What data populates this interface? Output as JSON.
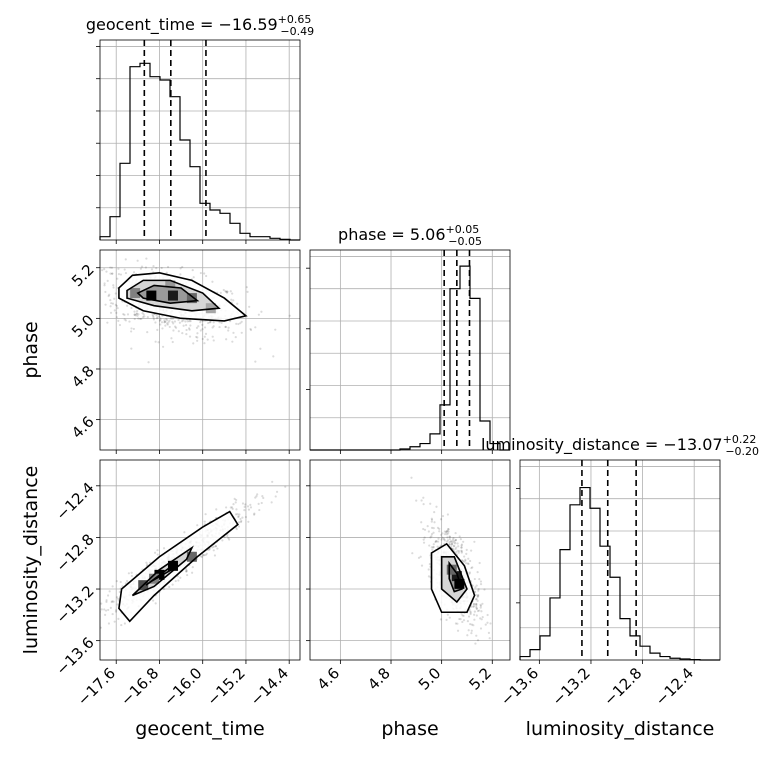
{
  "chart_data": {
    "type": "corner",
    "grid": true,
    "parameters": [
      {
        "name": "geocent_time",
        "label": "geocent_time",
        "median": "−16.59",
        "plus": "+0.65",
        "minus": "−0.49",
        "range": [
          -17.9,
          -14.2
        ],
        "ticks": [
          -17.6,
          -16.8,
          -16.0,
          -15.2,
          -14.4
        ],
        "tick_labels": [
          "−17.6",
          "−16.8",
          "−16.0",
          "−15.2",
          "−14.4"
        ],
        "quantiles": [
          -17.08,
          -16.59,
          -15.94
        ]
      },
      {
        "name": "phase",
        "label": "phase",
        "median": "5.06",
        "plus": "+0.05",
        "minus": "−0.05",
        "range": [
          4.48,
          5.27
        ],
        "ticks": [
          4.6,
          4.8,
          5.0,
          5.2
        ],
        "tick_labels": [
          "4.6",
          "4.8",
          "5.0",
          "5.2"
        ],
        "quantiles": [
          5.01,
          5.06,
          5.11
        ]
      },
      {
        "name": "luminosity_distance",
        "label": "luminosity_distance",
        "median": "−13.07",
        "plus": "+0.22",
        "minus": "−0.20",
        "range": [
          -13.75,
          -12.2
        ],
        "ticks": [
          -13.6,
          -13.2,
          -12.8,
          -12.4
        ],
        "tick_labels": [
          "−13.6",
          "−13.2",
          "−12.8",
          "−12.4"
        ],
        "quantiles": [
          -13.27,
          -13.07,
          -12.85
        ]
      }
    ],
    "histograms": [
      {
        "param": "geocent_time",
        "bin_edges_range": [
          -17.9,
          -14.2
        ],
        "bins": 20,
        "counts": [
          1,
          7,
          23,
          52,
          53,
          49,
          48,
          43,
          30,
          22,
          11,
          9,
          8,
          5,
          2,
          1,
          1,
          0.5,
          0.2,
          0
        ],
        "ymax": 60
      },
      {
        "param": "phase",
        "bin_edges_range": [
          4.48,
          5.27
        ],
        "bins": 20,
        "counts": [
          0,
          0,
          0,
          0,
          0,
          0,
          0,
          0,
          0,
          0.3,
          1,
          2,
          5,
          14,
          50,
          57,
          47,
          9,
          2,
          0
        ],
        "ymax": 62
      },
      {
        "param": "luminosity_distance",
        "bin_edges_range": [
          -13.75,
          -12.2
        ],
        "bins": 20,
        "counts": [
          1,
          3,
          7,
          18,
          32,
          45,
          50,
          44,
          33,
          24,
          12,
          7,
          4,
          2,
          1,
          0.5,
          0.3,
          0.1,
          0,
          0
        ],
        "ymax": 58
      }
    ],
    "joint": [
      {
        "x": "geocent_time",
        "y": "phase",
        "contours": [
          [
            [
              -17.55,
              5.12
            ],
            [
              -17.3,
              5.17
            ],
            [
              -16.8,
              5.18
            ],
            [
              -16.2,
              5.15
            ],
            [
              -15.6,
              5.08
            ],
            [
              -15.2,
              5.01
            ],
            [
              -15.6,
              4.99
            ],
            [
              -16.4,
              5.0
            ],
            [
              -17.1,
              5.03
            ],
            [
              -17.55,
              5.08
            ]
          ],
          [
            [
              -17.4,
              5.11
            ],
            [
              -17.1,
              5.15
            ],
            [
              -16.6,
              5.15
            ],
            [
              -16.0,
              5.1
            ],
            [
              -15.7,
              5.04
            ],
            [
              -16.2,
              5.03
            ],
            [
              -16.9,
              5.05
            ],
            [
              -17.4,
              5.08
            ]
          ],
          [
            [
              -17.2,
              5.1
            ],
            [
              -16.9,
              5.13
            ],
            [
              -16.4,
              5.12
            ],
            [
              -16.1,
              5.07
            ],
            [
              -16.6,
              5.06
            ],
            [
              -17.1,
              5.08
            ]
          ]
        ],
        "density_cells": [
          [
            -16.95,
            5.09,
            1.0
          ],
          [
            -16.55,
            5.09,
            0.9
          ],
          [
            -16.2,
            5.08,
            0.6
          ],
          [
            -17.25,
            5.1,
            0.5
          ],
          [
            -15.85,
            5.04,
            0.35
          ],
          [
            -16.6,
            5.13,
            0.4
          ]
        ],
        "scatter_center": [
          -16.6,
          5.06
        ],
        "scatter_spread": [
          0.7,
          0.07
        ],
        "scatter_corr": -0.45
      },
      {
        "x": "geocent_time",
        "y": "luminosity_distance",
        "contours": [
          [
            [
              -17.55,
              -13.35
            ],
            [
              -17.5,
              -13.2
            ],
            [
              -16.8,
              -12.95
            ],
            [
              -16.0,
              -12.72
            ],
            [
              -15.5,
              -12.6
            ],
            [
              -15.35,
              -12.7
            ],
            [
              -16.1,
              -12.95
            ],
            [
              -16.9,
              -13.25
            ],
            [
              -17.35,
              -13.45
            ]
          ],
          [
            [
              -17.3,
              -13.25
            ],
            [
              -16.8,
              -13.05
            ],
            [
              -16.2,
              -12.88
            ],
            [
              -16.3,
              -12.97
            ],
            [
              -16.9,
              -13.18
            ]
          ],
          [
            [
              -17.05,
              -13.17
            ],
            [
              -16.6,
              -13.03
            ],
            [
              -16.45,
              -13.02
            ],
            [
              -16.95,
              -13.14
            ]
          ]
        ],
        "density_cells": [
          [
            -16.8,
            -13.09,
            1.0
          ],
          [
            -16.55,
            -13.02,
            1.0
          ],
          [
            -17.1,
            -13.17,
            0.7
          ],
          [
            -16.2,
            -12.95,
            0.6
          ],
          [
            -16.9,
            -13.12,
            0.5
          ]
        ],
        "scatter_center": [
          -16.55,
          -13.0
        ],
        "scatter_spread": [
          0.7,
          0.22
        ],
        "scatter_corr": 0.95
      },
      {
        "x": "phase",
        "y": "luminosity_distance",
        "contours": [
          [
            [
              4.96,
              -12.92
            ],
            [
              5.02,
              -12.85
            ],
            [
              5.09,
              -13.02
            ],
            [
              5.13,
              -13.25
            ],
            [
              5.1,
              -13.38
            ],
            [
              5.0,
              -13.38
            ],
            [
              4.96,
              -13.2
            ]
          ],
          [
            [
              5.0,
              -12.95
            ],
            [
              5.05,
              -12.95
            ],
            [
              5.1,
              -13.2
            ],
            [
              5.06,
              -13.3
            ],
            [
              5.0,
              -13.2
            ]
          ],
          [
            [
              5.03,
              -13.0
            ],
            [
              5.06,
              -13.08
            ],
            [
              5.08,
              -13.2
            ],
            [
              5.05,
              -13.22
            ],
            [
              5.03,
              -13.12
            ]
          ]
        ],
        "density_cells": [
          [
            5.06,
            -13.1,
            0.9
          ],
          [
            5.07,
            -13.16,
            1.0
          ],
          [
            5.04,
            -13.05,
            0.6
          ]
        ],
        "scatter_center": [
          5.05,
          -13.08
        ],
        "scatter_spread": [
          0.05,
          0.2
        ],
        "scatter_corr": -0.6
      }
    ]
  }
}
